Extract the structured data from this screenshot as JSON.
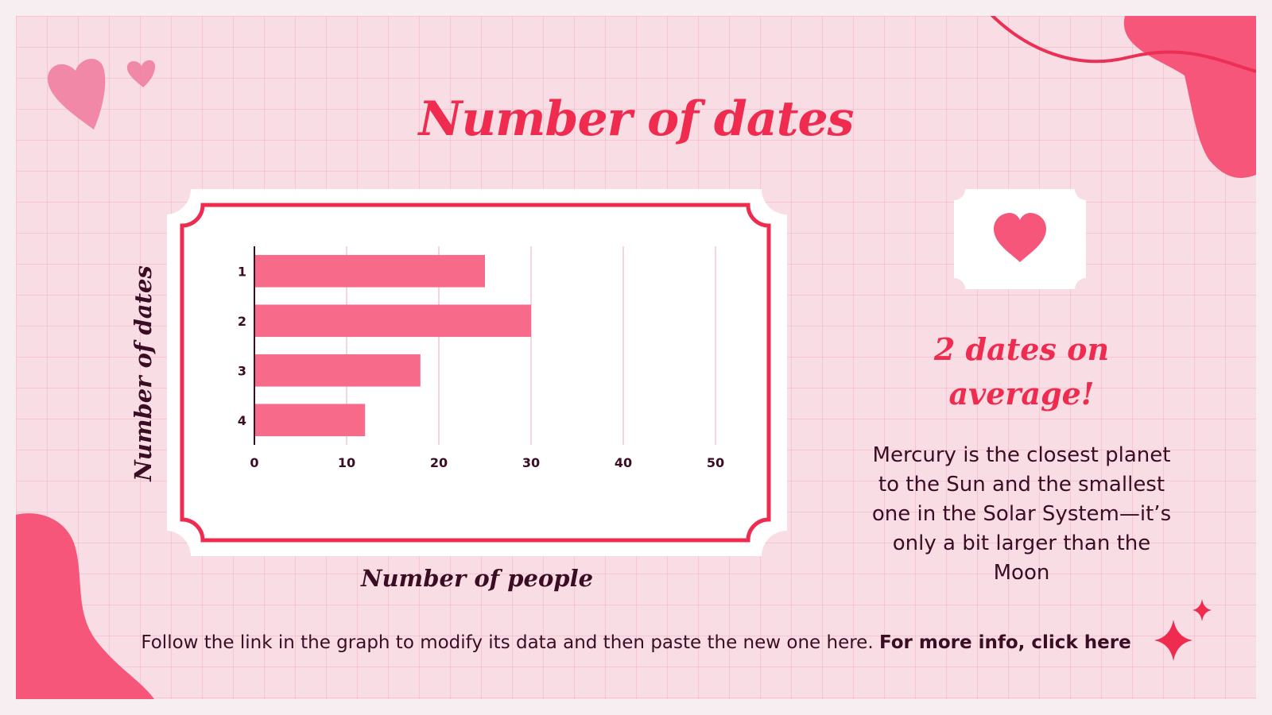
{
  "slide": {
    "title": "Number of dates",
    "headline_line1": "2 dates on",
    "headline_line2": "average!",
    "body": "Mercury is the closest planet to the Sun and the smallest one in the Solar System—it’s only a bit larger than the Moon",
    "footer_text": "Follow the link in the graph to modify its data and then paste the new one here.",
    "footer_link": "For more info, click here"
  },
  "colors": {
    "accent": "#ef2c4f",
    "bar": "#f76a8a",
    "dark": "#3a0d24",
    "grid_bg": "#f9dde4",
    "blob": "#f5567a"
  },
  "icons": [
    "heart-icon",
    "sparkle-icon",
    "heart-doodle-icon"
  ],
  "chart_data": {
    "type": "bar",
    "orientation": "horizontal",
    "categories": [
      "1",
      "2",
      "3",
      "4"
    ],
    "values": [
      25,
      30,
      18,
      12
    ],
    "xlabel": "Number of people",
    "ylabel": "Number of dates",
    "xlim": [
      0,
      50
    ],
    "xticks": [
      0,
      10,
      20,
      30,
      40,
      50
    ],
    "grid": "vertical"
  }
}
